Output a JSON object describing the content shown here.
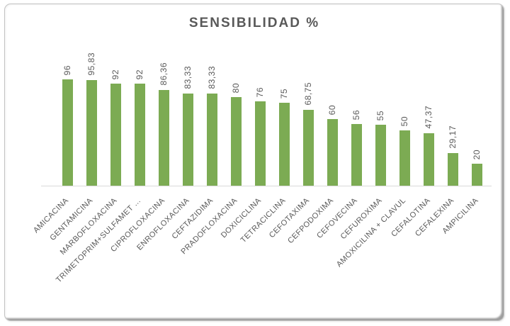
{
  "chart_data": {
    "type": "bar",
    "title": "SENSIBILIDAD %",
    "categories": [
      "AMICACINA",
      "GENTAMICINA",
      "MARBOFLOXACINA",
      "TRIMETOPRIM+SULFAMET …",
      "CIPROFLOXACINA",
      "ENROFLOXACINA",
      "CEFTAZIDIMA",
      "PRADOFLOXACINA",
      "DOXICICLINA",
      "TETRACICLINA",
      "CEFOTAXIMA",
      "CEFPODOXIMA",
      "CEFOVECINA",
      "CEFUROXIMA",
      "AMOXICILINA + CLAVUL",
      "CEFALOTINA",
      "CEFALEXINA",
      "AMPICILINA"
    ],
    "values": [
      96,
      95.83,
      92,
      92,
      86.36,
      83.33,
      83.33,
      80,
      76,
      75,
      68.75,
      60,
      56,
      55,
      50,
      47.37,
      29.17,
      20
    ],
    "value_labels": [
      "96",
      "95,83",
      "92",
      "92",
      "86,36",
      "83,33",
      "83,33",
      "80",
      "76",
      "75",
      "68,75",
      "60",
      "56",
      "55",
      "50",
      "47,37",
      "29,17",
      "20"
    ],
    "xlabel": "",
    "ylabel": "",
    "ylim": [
      0,
      100
    ],
    "grid": false,
    "legend": false,
    "colors": {
      "bar": "#7cab53",
      "text": "#595959",
      "axis_line": "#d9d9d9"
    }
  }
}
